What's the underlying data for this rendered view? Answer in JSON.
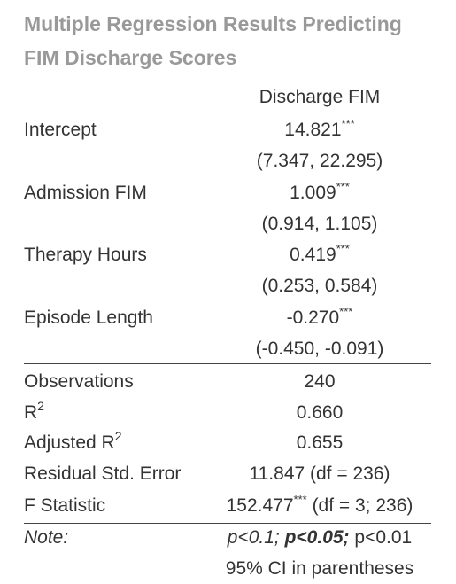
{
  "title": "Multiple Regression Results Predicting FIM Discharge Scores",
  "table": {
    "header": "Discharge FIM",
    "rows": [
      {
        "label": "Intercept",
        "estimate": "14.821",
        "stars": "***",
        "ci": "(7.347, 22.295)"
      },
      {
        "label": "Admission FIM",
        "estimate": "1.009",
        "stars": "***",
        "ci": "(0.914, 1.105)"
      },
      {
        "label": "Therapy Hours",
        "estimate": "0.419",
        "stars": "***",
        "ci": "(0.253, 0.584)"
      },
      {
        "label": "Episode Length",
        "estimate": "-0.270",
        "stars": "***",
        "ci": "(-0.450, -0.091)"
      }
    ],
    "stats": {
      "observations": {
        "label": "Observations",
        "value": "240"
      },
      "r2": {
        "label": "R",
        "sup": "2",
        "value": "0.660"
      },
      "adj_r2": {
        "label": "Adjusted R",
        "sup": "2",
        "value": "0.655"
      },
      "rse": {
        "label": "Residual Std. Error",
        "value": "11.847 (df = 236)"
      },
      "f": {
        "label": "F Statistic",
        "value": "152.477",
        "stars": "***",
        "df": "(df = 3; 236)"
      }
    },
    "note": {
      "label": "Note:",
      "p1": "p<0.1;",
      "p2": "p<0.05;",
      "p3": "p<0.01",
      "ci_note": "95% CI in parentheses"
    }
  }
}
